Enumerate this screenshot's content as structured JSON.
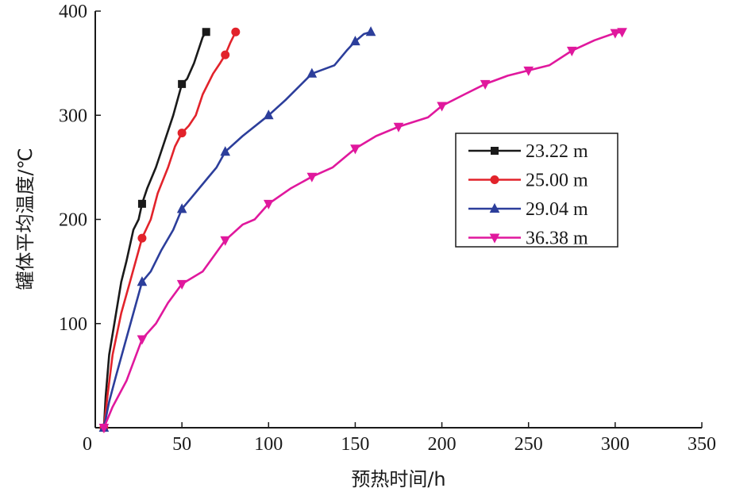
{
  "chart_data": {
    "type": "line",
    "xlabel": "预热时间/h",
    "ylabel": "罐体平均温度/℃",
    "xlim": [
      0,
      350
    ],
    "ylim": [
      0,
      400
    ],
    "xticks": [
      0,
      50,
      100,
      150,
      200,
      250,
      300,
      350
    ],
    "yticks": [
      100,
      200,
      300,
      400
    ],
    "x_tick_labels": [
      "0",
      "50",
      "100",
      "150",
      "200",
      "250",
      "300",
      "350"
    ],
    "y_tick_labels": [
      "100",
      "200",
      "300",
      "400"
    ],
    "grid": false,
    "legend_position": "right",
    "series": [
      {
        "name": "23.22 m",
        "color": "#1a1a1a",
        "marker": "square",
        "points": [
          [
            5,
            0
          ],
          [
            6,
            30
          ],
          [
            8,
            70
          ],
          [
            12,
            110
          ],
          [
            15,
            140
          ],
          [
            18,
            160
          ],
          [
            22,
            190
          ],
          [
            25,
            200
          ],
          [
            27,
            215
          ],
          [
            30,
            230
          ],
          [
            35,
            250
          ],
          [
            40,
            275
          ],
          [
            45,
            300
          ],
          [
            50,
            330
          ],
          [
            53,
            335
          ],
          [
            57,
            350
          ],
          [
            62,
            375
          ],
          [
            64,
            380
          ]
        ],
        "marker_points": [
          [
            5,
            0
          ],
          [
            27,
            215
          ],
          [
            50,
            330
          ],
          [
            64,
            380
          ]
        ]
      },
      {
        "name": "25.00 m",
        "color": "#e2232b",
        "marker": "circle",
        "points": [
          [
            5,
            0
          ],
          [
            7,
            30
          ],
          [
            10,
            70
          ],
          [
            15,
            110
          ],
          [
            20,
            140
          ],
          [
            25,
            170
          ],
          [
            27,
            182
          ],
          [
            32,
            200
          ],
          [
            36,
            225
          ],
          [
            42,
            250
          ],
          [
            46,
            270
          ],
          [
            50,
            283
          ],
          [
            54,
            290
          ],
          [
            58,
            300
          ],
          [
            62,
            320
          ],
          [
            68,
            340
          ],
          [
            72,
            350
          ],
          [
            75,
            358
          ],
          [
            78,
            370
          ],
          [
            81,
            380
          ]
        ],
        "marker_points": [
          [
            5,
            0
          ],
          [
            27,
            182
          ],
          [
            50,
            283
          ],
          [
            75,
            358
          ],
          [
            81,
            380
          ]
        ]
      },
      {
        "name": "29.04 m",
        "color": "#2c3e9b",
        "marker": "triangle-up",
        "points": [
          [
            5,
            0
          ],
          [
            8,
            25
          ],
          [
            12,
            50
          ],
          [
            17,
            80
          ],
          [
            22,
            110
          ],
          [
            27,
            140
          ],
          [
            32,
            150
          ],
          [
            38,
            170
          ],
          [
            45,
            190
          ],
          [
            50,
            210
          ],
          [
            55,
            220
          ],
          [
            65,
            240
          ],
          [
            70,
            250
          ],
          [
            75,
            265
          ],
          [
            85,
            280
          ],
          [
            100,
            300
          ],
          [
            110,
            315
          ],
          [
            125,
            340
          ],
          [
            138,
            348
          ],
          [
            145,
            362
          ],
          [
            150,
            371
          ],
          [
            155,
            378
          ],
          [
            159,
            380
          ]
        ],
        "marker_points": [
          [
            5,
            0
          ],
          [
            27,
            140
          ],
          [
            50,
            210
          ],
          [
            75,
            265
          ],
          [
            100,
            300
          ],
          [
            125,
            340
          ],
          [
            150,
            371
          ],
          [
            159,
            380
          ]
        ]
      },
      {
        "name": "36.38 m",
        "color": "#e0189d",
        "marker": "triangle-down",
        "points": [
          [
            5,
            0
          ],
          [
            10,
            20
          ],
          [
            18,
            45
          ],
          [
            27,
            85
          ],
          [
            35,
            100
          ],
          [
            42,
            120
          ],
          [
            50,
            138
          ],
          [
            62,
            150
          ],
          [
            75,
            180
          ],
          [
            85,
            195
          ],
          [
            92,
            200
          ],
          [
            100,
            215
          ],
          [
            113,
            230
          ],
          [
            125,
            241
          ],
          [
            137,
            250
          ],
          [
            150,
            268
          ],
          [
            162,
            280
          ],
          [
            175,
            289
          ],
          [
            192,
            298
          ],
          [
            200,
            309
          ],
          [
            213,
            320
          ],
          [
            225,
            330
          ],
          [
            238,
            338
          ],
          [
            250,
            343
          ],
          [
            262,
            348
          ],
          [
            275,
            362
          ],
          [
            288,
            372
          ],
          [
            300,
            379
          ],
          [
            304,
            380
          ]
        ],
        "marker_points": [
          [
            5,
            0
          ],
          [
            27,
            85
          ],
          [
            50,
            138
          ],
          [
            75,
            180
          ],
          [
            100,
            215
          ],
          [
            125,
            241
          ],
          [
            150,
            268
          ],
          [
            175,
            289
          ],
          [
            200,
            309
          ],
          [
            225,
            330
          ],
          [
            250,
            343
          ],
          [
            275,
            362
          ],
          [
            300,
            379
          ],
          [
            304,
            380
          ]
        ]
      }
    ]
  }
}
